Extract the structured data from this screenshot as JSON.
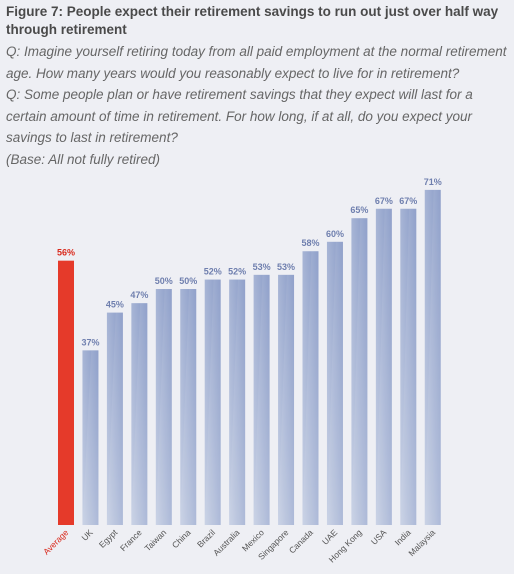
{
  "figure_title": "Figure 7: People expect their retirement savings to run out just over half way through retirement",
  "questions": [
    "Q: Imagine yourself retiring today from all paid employment at the normal retirement age. How many years would you reasonably expect to live for in retirement?",
    "Q: Some people plan or have retirement savings that they expect will last for a certain amount of time in retirement. For how long, if at all, do you expect your savings to last in retirement?"
  ],
  "base": "(Base: All not fully retired)",
  "chart_data": {
    "type": "bar",
    "title": "",
    "xlabel": "",
    "ylabel": "",
    "ylim": [
      0,
      100
    ],
    "grid": false,
    "legend": "none",
    "categories": [
      "Average",
      "UK",
      "Egypt",
      "France",
      "Taiwan",
      "China",
      "Brazil",
      "Australia",
      "Mexico",
      "Singapore",
      "Canada",
      "UAE",
      "Hong Kong",
      "USA",
      "India",
      "Malaysia"
    ],
    "values": [
      56,
      37,
      45,
      47,
      50,
      50,
      52,
      52,
      53,
      53,
      58,
      60,
      65,
      67,
      67,
      71
    ],
    "data_labels": [
      "56%",
      "37%",
      "45%",
      "47%",
      "50%",
      "50%",
      "52%",
      "52%",
      "53%",
      "53%",
      "58%",
      "60%",
      "65%",
      "67%",
      "67%",
      "71%"
    ],
    "highlight_category": "Average",
    "colors": {
      "highlight": "#e53a2a",
      "highlight_label": "#d9291c",
      "bar_light": "#c7d0e4",
      "bar_dark": "#8799c6",
      "label": "#6f7fae"
    }
  }
}
